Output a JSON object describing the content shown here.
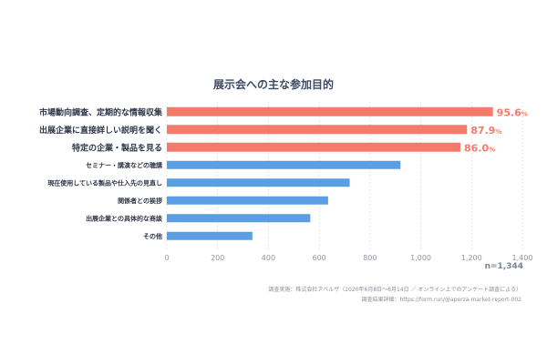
{
  "chart_data": {
    "type": "bar",
    "orientation": "horizontal",
    "title": "展示会への主な参加目的",
    "categories": [
      "市場動向調査、定期的な情報収集",
      "出展企業に直接詳しい説明を聞く",
      "特定の企業・製品を見る",
      "セミナー・講演などの聴講",
      "現在使用している製品や仕入先の見直し",
      "関係者との挨拶",
      "出展企業との具体的な商談",
      "その他"
    ],
    "values": [
      1284,
      1182,
      1156,
      920,
      720,
      635,
      565,
      337
    ],
    "highlighted": [
      true,
      true,
      true,
      false,
      false,
      false,
      false,
      false
    ],
    "data_labels": [
      {
        "value": "95.6",
        "unit": "%"
      },
      {
        "value": "87.9",
        "unit": "%"
      },
      {
        "value": "86.0",
        "unit": "%"
      }
    ],
    "xlim": [
      0,
      1400
    ],
    "xticks": [
      "0",
      "200",
      "400",
      "600",
      "800",
      "1,000",
      "1,200",
      "1,400"
    ],
    "grid": true,
    "colors": {
      "highlight": "#f47a6b",
      "normal": "#5a9fe3",
      "title": "#3d4a63",
      "label": "#2c3447",
      "tick": "#8f96a3",
      "grid": "#d6dbe2"
    }
  },
  "sample_size": "n=1,344",
  "source_note": "調査実施：株式会社アベルザ（2020年6月8日〜6月14日 ／ オンライン上でのアンケート調査による）",
  "source_url": "調査結果詳細：https://form.run/@aperza-market-report-002"
}
